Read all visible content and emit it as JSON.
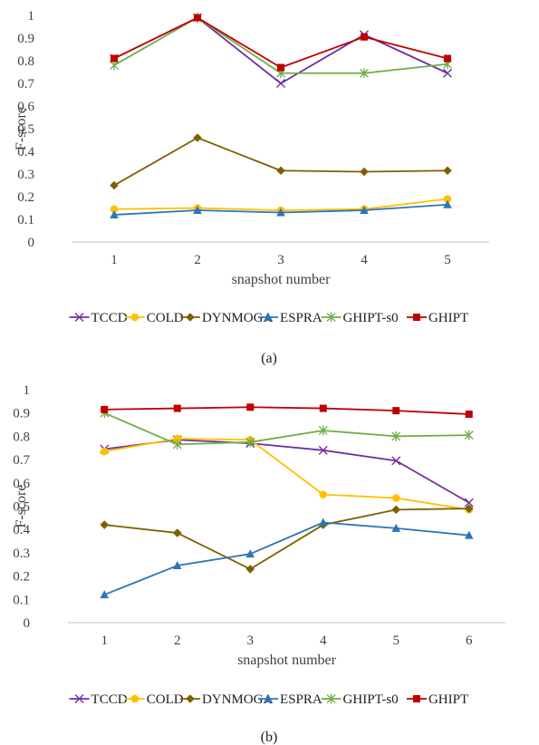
{
  "colors": {
    "TCCD": "#7030a0",
    "COLD": "#ffc000",
    "DYNMOGA": "#7f6000",
    "ESPRA": "#2e75b6",
    "GHIPT-s0": "#70ad47",
    "GHIPT": "#c00000",
    "grid": "#d9d9d9",
    "axis": "#bfbfbf"
  },
  "chart_data": [
    {
      "type": "line",
      "caption": "(a)",
      "xlabel": "snapshot number",
      "ylabel": "F-score",
      "ylim": [
        0,
        1
      ],
      "yticks": [
        "0",
        "0.1",
        "0.2",
        "0.3",
        "0.4",
        "0.5",
        "0.6",
        "0.7",
        "0.8",
        "0.9",
        "1"
      ],
      "categories": [
        "1",
        "2",
        "3",
        "4",
        "5"
      ],
      "grid": false,
      "legend": "bottom",
      "series": [
        {
          "name": "TCCD",
          "marker": "x",
          "values": [
            0.81,
            0.99,
            0.7,
            0.915,
            0.745
          ]
        },
        {
          "name": "COLD",
          "marker": "circle",
          "values": [
            0.145,
            0.15,
            0.14,
            0.145,
            0.19
          ]
        },
        {
          "name": "DYNMOGA",
          "marker": "diamond",
          "values": [
            0.25,
            0.46,
            0.315,
            0.31,
            0.315
          ]
        },
        {
          "name": "ESPRA",
          "marker": "triangle",
          "values": [
            0.12,
            0.14,
            0.13,
            0.14,
            0.165
          ]
        },
        {
          "name": "GHIPT-s0",
          "marker": "star",
          "values": [
            0.78,
            0.99,
            0.745,
            0.745,
            0.785
          ]
        },
        {
          "name": "GHIPT",
          "marker": "square",
          "values": [
            0.81,
            0.99,
            0.77,
            0.905,
            0.81
          ]
        }
      ]
    },
    {
      "type": "line",
      "caption": "(b)",
      "xlabel": "snapshot number",
      "ylabel": "F-score",
      "ylim": [
        0,
        1
      ],
      "yticks": [
        "0",
        "0.1",
        "0.2",
        "0.3",
        "0.4",
        "0.5",
        "0.6",
        "0.7",
        "0.8",
        "0.9",
        "1"
      ],
      "categories": [
        "1",
        "2",
        "3",
        "4",
        "5",
        "6"
      ],
      "grid": false,
      "legend": "bottom",
      "series": [
        {
          "name": "TCCD",
          "marker": "x",
          "values": [
            0.745,
            0.785,
            0.77,
            0.74,
            0.695,
            0.515
          ]
        },
        {
          "name": "COLD",
          "marker": "circle",
          "values": [
            0.735,
            0.79,
            0.785,
            0.55,
            0.535,
            0.485
          ]
        },
        {
          "name": "DYNMOGA",
          "marker": "diamond",
          "values": [
            0.42,
            0.385,
            0.23,
            0.42,
            0.485,
            0.49
          ]
        },
        {
          "name": "ESPRA",
          "marker": "triangle",
          "values": [
            0.12,
            0.245,
            0.295,
            0.43,
            0.405,
            0.375
          ]
        },
        {
          "name": "GHIPT-s0",
          "marker": "star",
          "values": [
            0.9,
            0.765,
            0.775,
            0.825,
            0.8,
            0.805
          ]
        },
        {
          "name": "GHIPT",
          "marker": "square",
          "values": [
            0.915,
            0.92,
            0.925,
            0.92,
            0.91,
            0.895
          ]
        }
      ]
    }
  ]
}
